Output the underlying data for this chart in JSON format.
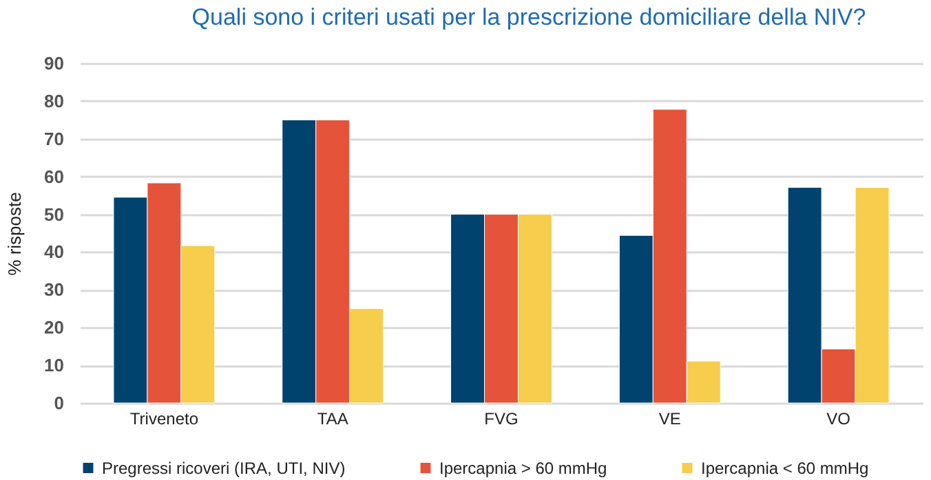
{
  "chart_data": {
    "type": "bar",
    "title": "Quali sono i criteri usati per la prescrizione domiciliare della NIV?",
    "ylabel": "% risposte",
    "categories": [
      "Triveneto",
      "TAA",
      "FVG",
      "VE",
      "VO"
    ],
    "series": [
      {
        "name": "Pregressi ricoveri (IRA, UTI, NIV)",
        "color": "#00436e",
        "values": [
          54.5,
          75,
          50,
          44.4,
          57.1
        ]
      },
      {
        "name": "Ipercapnia > 60 mmHg",
        "color": "#e5533a",
        "values": [
          58.3,
          75,
          50,
          77.8,
          14.3
        ]
      },
      {
        "name": "Ipercapnia < 60 mmHg",
        "color": "#f6cd4c",
        "values": [
          41.7,
          25,
          50,
          11.1,
          57.1
        ]
      }
    ],
    "ylim": [
      0,
      90
    ],
    "yticks": [
      0,
      10,
      20,
      30,
      40,
      50,
      60,
      70,
      80,
      90
    ],
    "grid": "y",
    "legend": "bottom"
  }
}
